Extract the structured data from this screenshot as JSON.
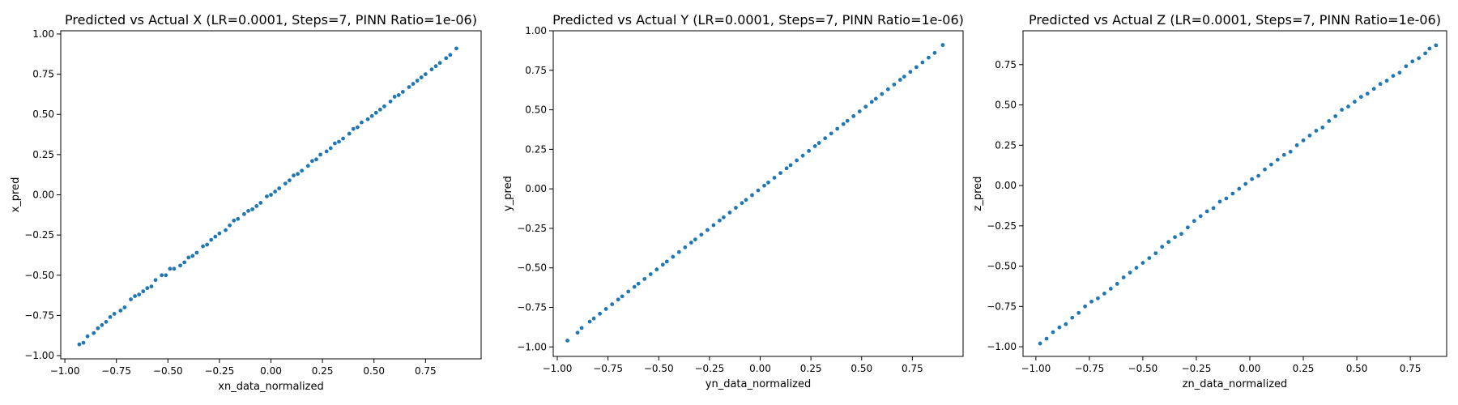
{
  "chart_data": [
    {
      "type": "scatter",
      "title": "Predicted vs Actual X (LR=0.0001, Steps=7, PINN Ratio=1e-06)",
      "xlabel": "xn_data_normalized",
      "ylabel": "x_pred",
      "xlim": [
        -1.02,
        1.02
      ],
      "ylim": [
        -1.02,
        1.02
      ],
      "xticks": [
        -1.0,
        -0.75,
        -0.5,
        -0.25,
        0.0,
        0.25,
        0.5,
        0.75
      ],
      "xtick_labels": [
        "−1.00",
        "−0.75",
        "−0.50",
        "−0.25",
        "0.00",
        "0.25",
        "0.50",
        "0.75"
      ],
      "yticks": [
        -1.0,
        -0.75,
        -0.5,
        -0.25,
        0.0,
        0.25,
        0.5,
        0.75,
        1.0
      ],
      "ytick_labels": [
        "−1.00",
        "−0.75",
        "−0.50",
        "−0.25",
        "0.00",
        "0.25",
        "0.50",
        "0.75",
        "1.00"
      ],
      "color": "#1f77b4",
      "grid": false,
      "series": [
        {
          "x": [
            -0.93,
            -0.91,
            -0.89,
            -0.86,
            -0.84,
            -0.82,
            -0.8,
            -0.78,
            -0.76,
            -0.73,
            -0.71,
            -0.68,
            -0.66,
            -0.64,
            -0.62,
            -0.6,
            -0.58,
            -0.56,
            -0.53,
            -0.51,
            -0.49,
            -0.47,
            -0.44,
            -0.42,
            -0.4,
            -0.38,
            -0.36,
            -0.33,
            -0.31,
            -0.29,
            -0.27,
            -0.25,
            -0.22,
            -0.2,
            -0.18,
            -0.16,
            -0.13,
            -0.11,
            -0.09,
            -0.07,
            -0.05,
            -0.02,
            0.0,
            0.02,
            0.04,
            0.07,
            0.09,
            0.11,
            0.13,
            0.15,
            0.18,
            0.2,
            0.22,
            0.24,
            0.27,
            0.29,
            0.31,
            0.33,
            0.35,
            0.38,
            0.4,
            0.42,
            0.44,
            0.47,
            0.49,
            0.51,
            0.53,
            0.55,
            0.58,
            0.6,
            0.62,
            0.64,
            0.67,
            0.69,
            0.71,
            0.73,
            0.75,
            0.78,
            0.8,
            0.82,
            0.85,
            0.87,
            0.9
          ],
          "y": [
            -0.93,
            -0.92,
            -0.88,
            -0.86,
            -0.83,
            -0.81,
            -0.79,
            -0.76,
            -0.74,
            -0.72,
            -0.7,
            -0.65,
            -0.63,
            -0.62,
            -0.6,
            -0.58,
            -0.57,
            -0.53,
            -0.5,
            -0.5,
            -0.46,
            -0.46,
            -0.44,
            -0.42,
            -0.39,
            -0.38,
            -0.36,
            -0.32,
            -0.31,
            -0.28,
            -0.26,
            -0.24,
            -0.22,
            -0.19,
            -0.16,
            -0.15,
            -0.12,
            -0.1,
            -0.09,
            -0.07,
            -0.05,
            -0.01,
            0.0,
            0.02,
            0.04,
            0.07,
            0.09,
            0.12,
            0.13,
            0.15,
            0.18,
            0.21,
            0.22,
            0.25,
            0.27,
            0.29,
            0.32,
            0.33,
            0.35,
            0.38,
            0.41,
            0.42,
            0.45,
            0.47,
            0.49,
            0.51,
            0.53,
            0.55,
            0.58,
            0.61,
            0.62,
            0.64,
            0.67,
            0.69,
            0.71,
            0.73,
            0.75,
            0.78,
            0.8,
            0.82,
            0.85,
            0.87,
            0.91
          ]
        }
      ]
    },
    {
      "type": "scatter",
      "title": "Predicted vs Actual Y (LR=0.0001, Steps=7, PINN Ratio=1e-06)",
      "xlabel": "yn_data_normalized",
      "ylabel": "y_pred",
      "xlim": [
        -1.02,
        1.0
      ],
      "ylim": [
        -1.06,
        1.0
      ],
      "xticks": [
        -1.0,
        -0.75,
        -0.5,
        -0.25,
        0.0,
        0.25,
        0.5,
        0.75
      ],
      "xtick_labels": [
        "−1.00",
        "−0.75",
        "−0.50",
        "−0.25",
        "0.00",
        "0.25",
        "0.50",
        "0.75"
      ],
      "yticks": [
        -1.0,
        -0.75,
        -0.5,
        -0.25,
        0.0,
        0.25,
        0.5,
        0.75,
        1.0
      ],
      "ytick_labels": [
        "−1.00",
        "−0.75",
        "−0.50",
        "−0.25",
        "0.00",
        "0.25",
        "0.50",
        "0.75",
        "1.00"
      ],
      "color": "#1f77b4",
      "grid": false,
      "series": [
        {
          "x": [
            -0.95,
            -0.9,
            -0.88,
            -0.84,
            -0.82,
            -0.79,
            -0.76,
            -0.73,
            -0.7,
            -0.68,
            -0.65,
            -0.62,
            -0.6,
            -0.57,
            -0.54,
            -0.51,
            -0.48,
            -0.46,
            -0.43,
            -0.4,
            -0.37,
            -0.34,
            -0.32,
            -0.29,
            -0.26,
            -0.23,
            -0.2,
            -0.18,
            -0.15,
            -0.12,
            -0.09,
            -0.07,
            -0.04,
            -0.01,
            0.02,
            0.04,
            0.07,
            0.1,
            0.13,
            0.15,
            0.18,
            0.21,
            0.24,
            0.27,
            0.29,
            0.32,
            0.35,
            0.38,
            0.41,
            0.43,
            0.46,
            0.49,
            0.52,
            0.55,
            0.57,
            0.6,
            0.63,
            0.66,
            0.69,
            0.71,
            0.74,
            0.77,
            0.8,
            0.83,
            0.86,
            0.9
          ],
          "y": [
            -0.96,
            -0.91,
            -0.88,
            -0.84,
            -0.82,
            -0.79,
            -0.76,
            -0.73,
            -0.7,
            -0.68,
            -0.65,
            -0.62,
            -0.6,
            -0.57,
            -0.54,
            -0.51,
            -0.48,
            -0.46,
            -0.43,
            -0.4,
            -0.37,
            -0.34,
            -0.32,
            -0.29,
            -0.26,
            -0.23,
            -0.2,
            -0.18,
            -0.15,
            -0.12,
            -0.09,
            -0.07,
            -0.04,
            -0.01,
            0.02,
            0.04,
            0.07,
            0.1,
            0.13,
            0.15,
            0.18,
            0.21,
            0.24,
            0.27,
            0.29,
            0.32,
            0.35,
            0.38,
            0.41,
            0.43,
            0.46,
            0.49,
            0.52,
            0.55,
            0.57,
            0.6,
            0.63,
            0.66,
            0.69,
            0.71,
            0.74,
            0.77,
            0.8,
            0.83,
            0.86,
            0.91
          ]
        }
      ]
    },
    {
      "type": "scatter",
      "title": "Predicted vs Actual Z (LR=0.0001, Steps=7, PINN Ratio=1e-06)",
      "xlabel": "zn_data_normalized",
      "ylabel": "z_pred",
      "xlim": [
        -1.06,
        0.92
      ],
      "ylim": [
        -1.06,
        0.96
      ],
      "xticks": [
        -1.0,
        -0.75,
        -0.5,
        -0.25,
        0.0,
        0.25,
        0.5,
        0.75
      ],
      "xtick_labels": [
        "−1.00",
        "−0.75",
        "−0.50",
        "−0.25",
        "0.00",
        "0.25",
        "0.50",
        "0.75"
      ],
      "yticks": [
        -1.0,
        -0.75,
        -0.5,
        -0.25,
        0.0,
        0.25,
        0.5,
        0.75
      ],
      "ytick_labels": [
        "−1.00",
        "−0.75",
        "−0.50",
        "−0.25",
        "0.00",
        "0.25",
        "0.50",
        "0.75"
      ],
      "color": "#1f77b4",
      "grid": false,
      "series": [
        {
          "x": [
            -0.98,
            -0.95,
            -0.92,
            -0.89,
            -0.86,
            -0.83,
            -0.8,
            -0.77,
            -0.74,
            -0.71,
            -0.68,
            -0.65,
            -0.62,
            -0.59,
            -0.56,
            -0.53,
            -0.5,
            -0.47,
            -0.44,
            -0.41,
            -0.38,
            -0.35,
            -0.32,
            -0.29,
            -0.26,
            -0.23,
            -0.2,
            -0.17,
            -0.14,
            -0.11,
            -0.08,
            -0.05,
            -0.02,
            0.01,
            0.04,
            0.07,
            0.1,
            0.13,
            0.16,
            0.19,
            0.22,
            0.25,
            0.28,
            0.31,
            0.34,
            0.37,
            0.4,
            0.43,
            0.46,
            0.49,
            0.52,
            0.55,
            0.58,
            0.61,
            0.64,
            0.67,
            0.7,
            0.73,
            0.76,
            0.79,
            0.82,
            0.84,
            0.87
          ],
          "y": [
            -0.98,
            -0.95,
            -0.91,
            -0.88,
            -0.86,
            -0.82,
            -0.79,
            -0.75,
            -0.72,
            -0.7,
            -0.67,
            -0.64,
            -0.61,
            -0.57,
            -0.54,
            -0.51,
            -0.48,
            -0.45,
            -0.42,
            -0.38,
            -0.35,
            -0.32,
            -0.3,
            -0.26,
            -0.22,
            -0.19,
            -0.16,
            -0.14,
            -0.1,
            -0.08,
            -0.05,
            -0.02,
            0.01,
            0.04,
            0.06,
            0.1,
            0.13,
            0.16,
            0.19,
            0.21,
            0.25,
            0.28,
            0.31,
            0.34,
            0.36,
            0.4,
            0.43,
            0.47,
            0.49,
            0.52,
            0.55,
            0.57,
            0.6,
            0.63,
            0.65,
            0.68,
            0.7,
            0.74,
            0.77,
            0.79,
            0.82,
            0.85,
            0.87
          ]
        }
      ]
    }
  ]
}
